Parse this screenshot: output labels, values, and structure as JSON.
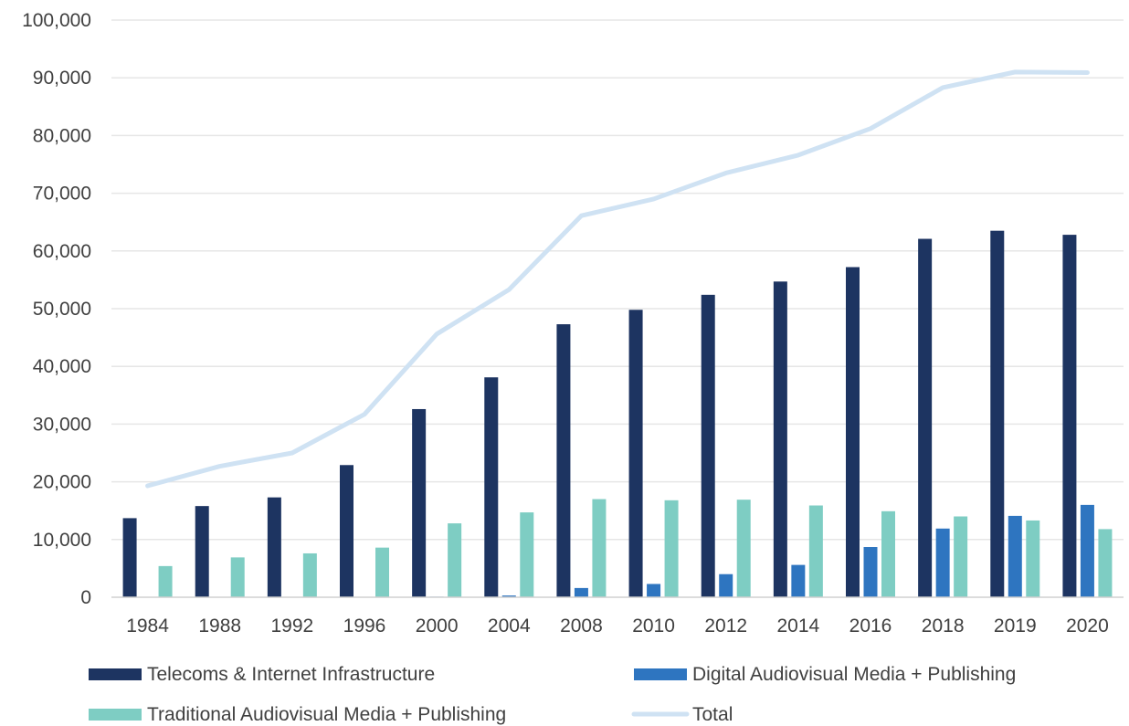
{
  "chart_data": {
    "type": "bar",
    "categories": [
      "1984",
      "1988",
      "1992",
      "1996",
      "2000",
      "2004",
      "2008",
      "2010",
      "2012",
      "2014",
      "2016",
      "2018",
      "2019",
      "2020"
    ],
    "series": [
      {
        "name": "Telecoms & Internet Infrastructure",
        "type": "bar",
        "color": "#1d3461",
        "values": [
          13700,
          15800,
          17300,
          22900,
          32600,
          38100,
          47300,
          49800,
          52400,
          54700,
          57200,
          62100,
          63500,
          62800
        ]
      },
      {
        "name": "Digital Audiovisual Media + Publishing",
        "type": "bar",
        "color": "#2e75c0",
        "values": [
          0,
          0,
          0,
          0,
          100,
          300,
          1600,
          2300,
          4000,
          5600,
          8700,
          11900,
          14100,
          16000
        ]
      },
      {
        "name": "Traditional Audiovisual Media + Publishing",
        "type": "bar",
        "color": "#7ecdc3",
        "values": [
          5400,
          6900,
          7600,
          8600,
          12800,
          14700,
          17000,
          16800,
          16900,
          15900,
          14900,
          14000,
          13300,
          11800
        ]
      },
      {
        "name": "Total",
        "type": "line",
        "color": "#cfe2f3",
        "values": [
          19300,
          22700,
          25000,
          31700,
          45600,
          53300,
          66100,
          69000,
          73500,
          76600,
          81200,
          88300,
          91000,
          90900
        ]
      }
    ],
    "y_ticks": [
      "0",
      "10,000",
      "20,000",
      "30,000",
      "40,000",
      "50,000",
      "60,000",
      "70,000",
      "80,000",
      "90,000",
      "100,000"
    ],
    "ylim": [
      0,
      100000
    ],
    "grid": true,
    "legend_position": "bottom",
    "title": "",
    "xlabel": "",
    "ylabel": ""
  }
}
